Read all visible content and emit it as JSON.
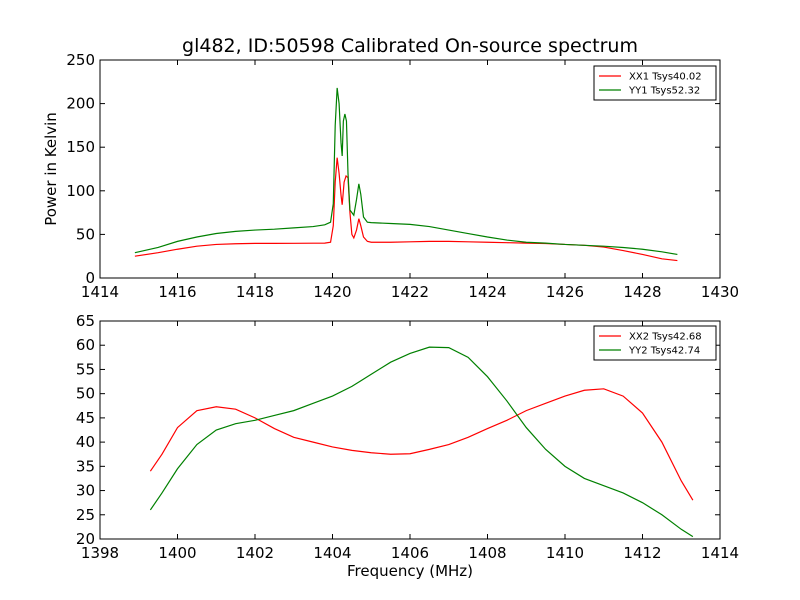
{
  "title": "gl482, ID:50598 Calibrated On-source spectrum",
  "chart_data": [
    {
      "type": "line",
      "ylabel": "Power in Kelvin",
      "xlabel": "",
      "xlim": [
        1414,
        1430
      ],
      "ylim": [
        0,
        250
      ],
      "xticks": [
        "1414",
        "1416",
        "1418",
        "1420",
        "1422",
        "1424",
        "1426",
        "1428",
        "1430"
      ],
      "yticks": [
        "0",
        "50",
        "100",
        "150",
        "200",
        "250"
      ],
      "legend_position": "top-right",
      "series": [
        {
          "name": "XX1 Tsys40.02",
          "color": "#ff0000",
          "points": [
            [
              1414.9,
              25
            ],
            [
              1415.5,
              29
            ],
            [
              1416,
              33
            ],
            [
              1416.5,
              36.5
            ],
            [
              1417,
              38.5
            ],
            [
              1417.5,
              39.3
            ],
            [
              1418,
              39.7
            ],
            [
              1418.5,
              39.7
            ],
            [
              1419,
              39.8
            ],
            [
              1419.5,
              39.9
            ],
            [
              1419.8,
              40
            ],
            [
              1419.95,
              41
            ],
            [
              1420.02,
              60
            ],
            [
              1420.07,
              110
            ],
            [
              1420.12,
              138
            ],
            [
              1420.17,
              120
            ],
            [
              1420.22,
              95
            ],
            [
              1420.25,
              84
            ],
            [
              1420.3,
              110
            ],
            [
              1420.35,
              117
            ],
            [
              1420.4,
              115
            ],
            [
              1420.45,
              75
            ],
            [
              1420.5,
              50
            ],
            [
              1420.55,
              46
            ],
            [
              1420.62,
              55
            ],
            [
              1420.68,
              68
            ],
            [
              1420.73,
              60
            ],
            [
              1420.8,
              47
            ],
            [
              1420.9,
              42
            ],
            [
              1421,
              41
            ],
            [
              1421.5,
              41
            ],
            [
              1422,
              41.5
            ],
            [
              1422.5,
              42
            ],
            [
              1423,
              42
            ],
            [
              1423.5,
              41.5
            ],
            [
              1424,
              41
            ],
            [
              1424.5,
              40.5
            ],
            [
              1425,
              40
            ],
            [
              1425.5,
              39.5
            ],
            [
              1426,
              38.5
            ],
            [
              1426.5,
              37.5
            ],
            [
              1427,
              35.5
            ],
            [
              1427.5,
              31.5
            ],
            [
              1428,
              27
            ],
            [
              1428.5,
              22
            ],
            [
              1428.9,
              20
            ]
          ]
        },
        {
          "name": "YY1 Tsys52.32",
          "color": "#008000",
          "points": [
            [
              1414.9,
              29
            ],
            [
              1415.5,
              35
            ],
            [
              1416,
              42
            ],
            [
              1416.5,
              47
            ],
            [
              1417,
              51
            ],
            [
              1417.5,
              53.5
            ],
            [
              1418,
              55
            ],
            [
              1418.5,
              56
            ],
            [
              1419,
              57.5
            ],
            [
              1419.5,
              59
            ],
            [
              1419.8,
              61
            ],
            [
              1419.95,
              64
            ],
            [
              1420.02,
              85
            ],
            [
              1420.07,
              175
            ],
            [
              1420.12,
              218
            ],
            [
              1420.17,
              200
            ],
            [
              1420.22,
              155
            ],
            [
              1420.25,
              140
            ],
            [
              1420.28,
              180
            ],
            [
              1420.32,
              188
            ],
            [
              1420.36,
              180
            ],
            [
              1420.4,
              120
            ],
            [
              1420.45,
              78
            ],
            [
              1420.55,
              72
            ],
            [
              1420.62,
              90
            ],
            [
              1420.68,
              108
            ],
            [
              1420.73,
              96
            ],
            [
              1420.8,
              70
            ],
            [
              1420.9,
              64
            ],
            [
              1421,
              63.5
            ],
            [
              1421.5,
              62.5
            ],
            [
              1422,
              61.5
            ],
            [
              1422.5,
              59
            ],
            [
              1423,
              55
            ],
            [
              1423.5,
              51
            ],
            [
              1424,
              47
            ],
            [
              1424.5,
              43.5
            ],
            [
              1425,
              41
            ],
            [
              1425.5,
              40
            ],
            [
              1426,
              38.5
            ],
            [
              1426.5,
              37.5
            ],
            [
              1427,
              36.5
            ],
            [
              1427.5,
              35
            ],
            [
              1428,
              33
            ],
            [
              1428.5,
              30
            ],
            [
              1428.9,
              27
            ]
          ]
        }
      ]
    },
    {
      "type": "line",
      "ylabel": "",
      "xlabel": "Frequency (MHz)",
      "xlim": [
        1398,
        1414
      ],
      "ylim": [
        20,
        65
      ],
      "xticks": [
        "1398",
        "1400",
        "1402",
        "1404",
        "1406",
        "1408",
        "1410",
        "1412",
        "1414"
      ],
      "yticks": [
        "20",
        "25",
        "30",
        "35",
        "40",
        "45",
        "50",
        "55",
        "60",
        "65"
      ],
      "legend_position": "top-right",
      "series": [
        {
          "name": "XX2 Tsys42.68",
          "color": "#ff0000",
          "points": [
            [
              1399.3,
              34
            ],
            [
              1399.6,
              37.5
            ],
            [
              1400,
              43
            ],
            [
              1400.5,
              46.5
            ],
            [
              1401,
              47.3
            ],
            [
              1401.5,
              46.8
            ],
            [
              1402,
              45
            ],
            [
              1402.5,
              42.8
            ],
            [
              1403,
              41
            ],
            [
              1403.5,
              40
            ],
            [
              1404,
              39
            ],
            [
              1404.5,
              38.3
            ],
            [
              1405,
              37.8
            ],
            [
              1405.5,
              37.5
            ],
            [
              1406,
              37.6
            ],
            [
              1406.5,
              38.5
            ],
            [
              1407,
              39.5
            ],
            [
              1407.5,
              41
            ],
            [
              1408,
              42.8
            ],
            [
              1408.5,
              44.5
            ],
            [
              1409,
              46.5
            ],
            [
              1409.5,
              48
            ],
            [
              1410,
              49.5
            ],
            [
              1410.5,
              50.7
            ],
            [
              1411,
              51
            ],
            [
              1411.5,
              49.5
            ],
            [
              1412,
              46
            ],
            [
              1412.5,
              40
            ],
            [
              1413,
              32
            ],
            [
              1413.3,
              28
            ]
          ]
        },
        {
          "name": "YY2 Tsys42.74",
          "color": "#008000",
          "points": [
            [
              1399.3,
              26
            ],
            [
              1399.6,
              29.5
            ],
            [
              1400,
              34.5
            ],
            [
              1400.5,
              39.5
            ],
            [
              1401,
              42.5
            ],
            [
              1401.5,
              43.8
            ],
            [
              1402,
              44.5
            ],
            [
              1402.5,
              45.5
            ],
            [
              1403,
              46.5
            ],
            [
              1403.5,
              48
            ],
            [
              1404,
              49.5
            ],
            [
              1404.5,
              51.5
            ],
            [
              1405,
              54
            ],
            [
              1405.5,
              56.5
            ],
            [
              1406,
              58.3
            ],
            [
              1406.5,
              59.6
            ],
            [
              1407,
              59.5
            ],
            [
              1407.5,
              57.5
            ],
            [
              1408,
              53.5
            ],
            [
              1408.5,
              48.5
            ],
            [
              1409,
              43
            ],
            [
              1409.5,
              38.5
            ],
            [
              1410,
              35
            ],
            [
              1410.5,
              32.5
            ],
            [
              1411,
              31
            ],
            [
              1411.5,
              29.5
            ],
            [
              1412,
              27.5
            ],
            [
              1412.5,
              25
            ],
            [
              1413,
              22
            ],
            [
              1413.3,
              20.5
            ]
          ]
        }
      ]
    }
  ]
}
